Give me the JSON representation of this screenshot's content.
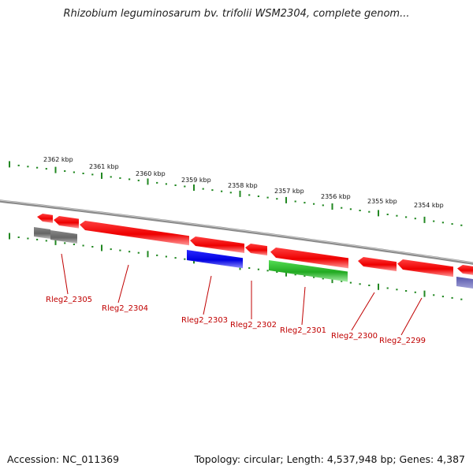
{
  "title": "Rhizobium leguminosarum bv. trifolii WSM2304, complete genom...",
  "footer": {
    "accession": "Accession: NC_011369",
    "summary": "Topology: circular; Length: 4,537,948 bp; Genes: 4,387"
  },
  "scale_labels": [
    "2362 kbp",
    "2361 kbp",
    "2360 kbp",
    "2359 kbp",
    "2358 kbp",
    "2357 kbp",
    "2356 kbp",
    "2355 kbp",
    "2354 kbp"
  ],
  "gene_labels": [
    "Rleg2_2305",
    "Rleg2_2304",
    "Rleg2_2303",
    "Rleg2_2302",
    "Rleg2_2301",
    "Rleg2_2300",
    "Rleg2_2299"
  ],
  "colors": {
    "forward_gene": "#ff0000",
    "gray_gene": "#707070",
    "blue_gene": "#0000ee",
    "green_gene": "#33bb33",
    "tick": "#228822",
    "backbone": "#888888",
    "label": "#c00000"
  }
}
